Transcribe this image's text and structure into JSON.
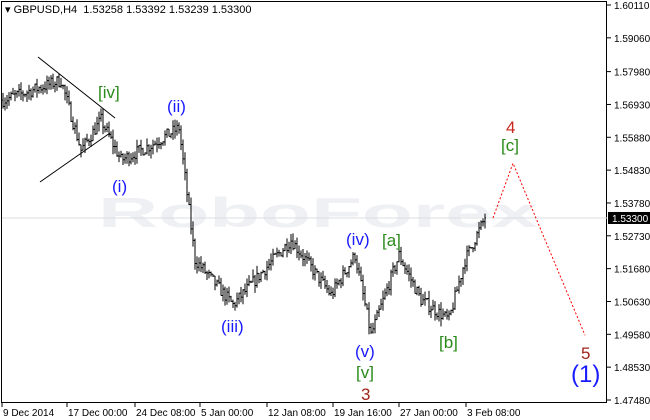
{
  "header": {
    "title": "GBPUSD,H4",
    "ohlc": "1.53258 1.53392 1.53239 1.53300"
  },
  "chart_data": {
    "type": "ohlc-bar",
    "symbol": "GBPUSD",
    "timeframe": "H4",
    "last_price": "1.53300",
    "ylim": [
      1.4748,
      1.6011
    ],
    "y_ticks": [
      "1.60110",
      "1.59060",
      "1.57980",
      "1.56930",
      "1.55880",
      "1.54830",
      "1.53780",
      "1.52730",
      "1.51680",
      "1.50630",
      "1.49580",
      "1.48530",
      "1.47480"
    ],
    "x_ticks": [
      "9 Dec 2014",
      "17 Dec 00:00",
      "24 Dec 08:00",
      "5 Jan 00:00",
      "12 Jan 08:00",
      "19 Jan 16:00",
      "27 Jan 00:00",
      "3 Feb 08:00"
    ],
    "price_path": [
      [
        0,
        1.5707
      ],
      [
        29,
        1.577
      ],
      [
        39,
        1.5547
      ],
      [
        49,
        1.5643
      ],
      [
        59,
        1.5515
      ],
      [
        74,
        1.5563
      ],
      [
        88,
        1.5618
      ],
      [
        96,
        1.5196
      ],
      [
        115,
        1.5052
      ],
      [
        144,
        1.526
      ],
      [
        164,
        1.5084
      ],
      [
        176,
        1.5211
      ],
      [
        184,
        1.4956
      ],
      [
        198,
        1.5211
      ],
      [
        209,
        1.5068
      ],
      [
        223,
        1.5004
      ],
      [
        231,
        1.5196
      ],
      [
        241,
        1.533
      ]
    ],
    "projection": [
      [
        245,
        1.533
      ],
      [
        255,
        1.5505
      ],
      [
        291,
        1.4955
      ]
    ],
    "watermark": "RoboForex",
    "wave_labels": {
      "iv_sq": "[iv]",
      "ii": "(ii)",
      "i": "(i)",
      "iii": "(iii)",
      "iv": "(iv)",
      "a": "[a]",
      "v": "(v)",
      "v_sq": "[v]",
      "three": "3",
      "b": "[b]",
      "four": "4",
      "c": "[c]",
      "five": "5",
      "one": "(1)"
    },
    "colors": {
      "minor": "#1a1aff",
      "minute": "#2a8a1a",
      "intermediate": "#c8281e",
      "projection": "#ff0000"
    }
  }
}
